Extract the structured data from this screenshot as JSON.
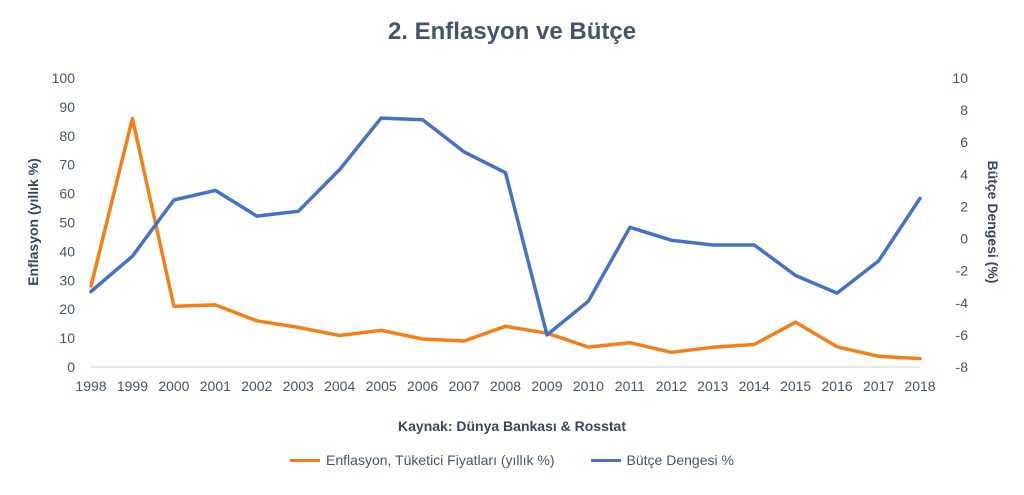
{
  "chart_data": {
    "type": "line",
    "title": "2. Enflasyon ve Bütçe",
    "x": [
      "1998",
      "1999",
      "2000",
      "2001",
      "2002",
      "2003",
      "2004",
      "2005",
      "2006",
      "2007",
      "2008",
      "2009",
      "2010",
      "2011",
      "2012",
      "2013",
      "2014",
      "2015",
      "2016",
      "2017",
      "2018"
    ],
    "y_left_label": "Enflasyon  (yıllık %)",
    "y_right_label": "Bütçe Dengesi (%)",
    "y_left_range": [
      0,
      100
    ],
    "y_left_ticks": [
      "0",
      "10",
      "20",
      "30",
      "40",
      "50",
      "60",
      "70",
      "80",
      "90",
      "100"
    ],
    "y_right_range": [
      -8,
      10
    ],
    "y_right_ticks": [
      "-8",
      "-6",
      "-4",
      "-2",
      "0",
      "2",
      "4",
      "6",
      "8",
      "10"
    ],
    "grid": false,
    "legend_position": "bottom",
    "source": "Kaynak: Dünya Bankası & Rosstat",
    "series": [
      {
        "name": "Enflasyon, Tüketici Fiyatları (yıllık %)",
        "axis": "left",
        "color": "#f57f17",
        "values": [
          28,
          86,
          21,
          21.5,
          16,
          13.7,
          10.9,
          12.7,
          9.7,
          9,
          14.1,
          11.7,
          6.9,
          8.4,
          5.1,
          6.8,
          7.8,
          15.5,
          7,
          3.7,
          2.9
        ]
      },
      {
        "name": "Bütçe Dengesi %",
        "axis": "right",
        "color": "#4472c4",
        "values": [
          -3.3,
          -1.1,
          2.4,
          3.0,
          1.4,
          1.7,
          4.3,
          7.5,
          7.4,
          5.4,
          4.1,
          -6.0,
          -3.9,
          0.7,
          -0.1,
          -0.4,
          -0.4,
          -2.3,
          -3.4,
          -1.4,
          2.5
        ]
      }
    ]
  }
}
